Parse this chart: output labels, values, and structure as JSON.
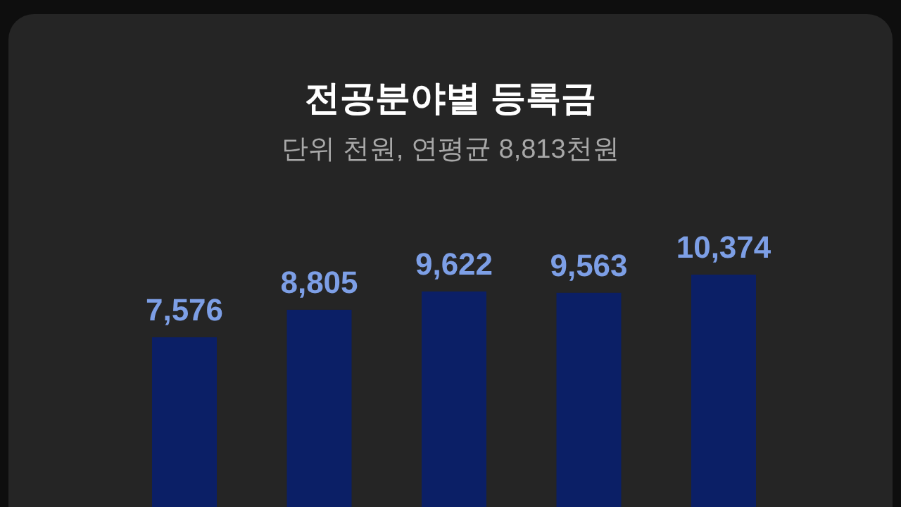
{
  "chart_data": {
    "type": "bar",
    "title": "전공분야별 등록금",
    "subtitle": "단위 천원, 연평균 8,813천원",
    "categories": [
      null,
      null,
      null,
      null,
      null
    ],
    "values": [
      7576,
      8805,
      9622,
      9563,
      10374
    ],
    "value_labels": [
      "7,576",
      "8,805",
      "9,622",
      "9,563",
      "10,374"
    ],
    "color": "#0b1f66"
  }
}
